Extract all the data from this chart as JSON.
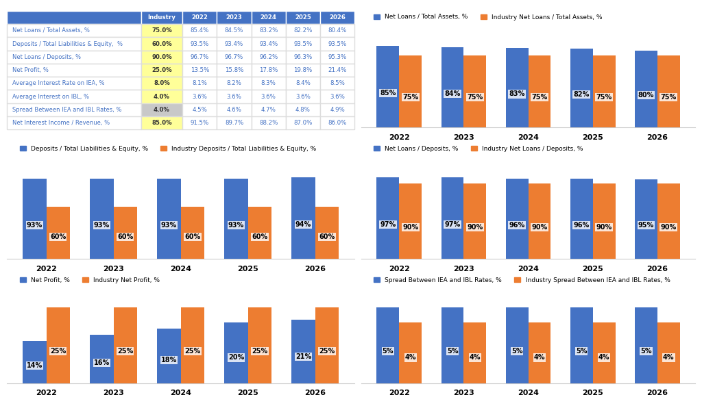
{
  "years": [
    "2022",
    "2023",
    "2024",
    "2025",
    "2026"
  ],
  "table": {
    "rows": [
      "Net Loans / Total Assets, %",
      "Deposits / Total Liabilities & Equity,  %",
      "Net Loans / Deposits, %",
      "Net Profit, %",
      "Average Interest Rate on IEA, %",
      "Average Interest on IBL, %",
      "Spread Between IEA and IBL Rates, %",
      "Net Interest Income / Revenue, %"
    ],
    "col_headers": [
      "",
      "Industry",
      "2022",
      "2023",
      "2024",
      "2025",
      "2026"
    ],
    "industry": [
      "75.0%",
      "60.0%",
      "90.0%",
      "25.0%",
      "8.0%",
      "4.0%",
      "4.0%",
      "85.0%"
    ],
    "industry_bg": [
      "yellow",
      "yellow",
      "yellow",
      "yellow",
      "yellow",
      "yellow",
      "lightgray",
      "yellow"
    ],
    "data_2022": [
      "85.4%",
      "93.5%",
      "96.7%",
      "13.5%",
      "8.1%",
      "3.6%",
      "4.5%",
      "91.5%"
    ],
    "data_2023": [
      "84.5%",
      "93.4%",
      "96.7%",
      "15.8%",
      "8.2%",
      "3.6%",
      "4.6%",
      "89.7%"
    ],
    "data_2024": [
      "83.2%",
      "93.4%",
      "96.2%",
      "17.8%",
      "8.3%",
      "3.6%",
      "4.7%",
      "88.2%"
    ],
    "data_2025": [
      "82.2%",
      "93.5%",
      "96.3%",
      "19.8%",
      "8.4%",
      "3.6%",
      "4.8%",
      "87.0%"
    ],
    "data_2026": [
      "80.4%",
      "93.5%",
      "95.3%",
      "21.4%",
      "8.5%",
      "3.6%",
      "4.9%",
      "86.0%"
    ]
  },
  "chart1": {
    "legend1": "Net Loans / Total Assets, %",
    "legend2": "Industry Net Loans / Total Assets, %",
    "blue_vals": [
      85,
      84,
      83,
      82,
      80
    ],
    "orange_vals": [
      75,
      75,
      75,
      75,
      75
    ],
    "blue_labels": [
      "85%",
      "84%",
      "83%",
      "82%",
      "80%"
    ],
    "orange_labels": [
      "75%",
      "75%",
      "75%",
      "75%",
      "75%"
    ]
  },
  "chart2": {
    "legend1": "Deposits / Total Liabilities & Equity, %",
    "legend2": "Industry Deposits / Total Liabilities & Equity, %",
    "blue_vals": [
      93,
      93,
      93,
      93,
      94
    ],
    "orange_vals": [
      60,
      60,
      60,
      60,
      60
    ],
    "blue_labels": [
      "93%",
      "93%",
      "93%",
      "93%",
      "94%"
    ],
    "orange_labels": [
      "60%",
      "60%",
      "60%",
      "60%",
      "60%"
    ]
  },
  "chart3": {
    "legend1": "Net Loans / Deposits, %",
    "legend2": "Industry Net Loans / Deposits, %",
    "blue_vals": [
      97,
      97,
      96,
      96,
      95
    ],
    "orange_vals": [
      90,
      90,
      90,
      90,
      90
    ],
    "blue_labels": [
      "97%",
      "97%",
      "96%",
      "96%",
      "95%"
    ],
    "orange_labels": [
      "90%",
      "90%",
      "90%",
      "90%",
      "90%"
    ]
  },
  "chart4": {
    "legend1": "Net Profit, %",
    "legend2": "Industry Net Profit, %",
    "blue_vals": [
      14,
      16,
      18,
      20,
      21
    ],
    "orange_vals": [
      25,
      25,
      25,
      25,
      25
    ],
    "blue_labels": [
      "14%",
      "16%",
      "18%",
      "20%",
      "21%"
    ],
    "orange_labels": [
      "25%",
      "25%",
      "25%",
      "25%",
      "25%"
    ]
  },
  "chart5": {
    "legend1": "Spread Between IEA and IBL Rates, %",
    "legend2": "Industry Spread Between IEA and IBL Rates, %",
    "blue_vals": [
      5,
      5,
      5,
      5,
      5
    ],
    "orange_vals": [
      4,
      4,
      4,
      4,
      4
    ],
    "blue_labels": [
      "5%",
      "5%",
      "5%",
      "5%",
      "5%"
    ],
    "orange_labels": [
      "4%",
      "4%",
      "4%",
      "4%",
      "4%"
    ]
  },
  "blue_color": "#4472C4",
  "orange_color": "#ED7D31",
  "header_color": "#4472C4",
  "yellow_bg": "#FFFF99",
  "gray_bg": "#C8C8C8",
  "row_text_color": "#4472C4",
  "bar_label_fontsize": 7,
  "legend_fontsize": 6.5,
  "title_fontsize": 8.5
}
